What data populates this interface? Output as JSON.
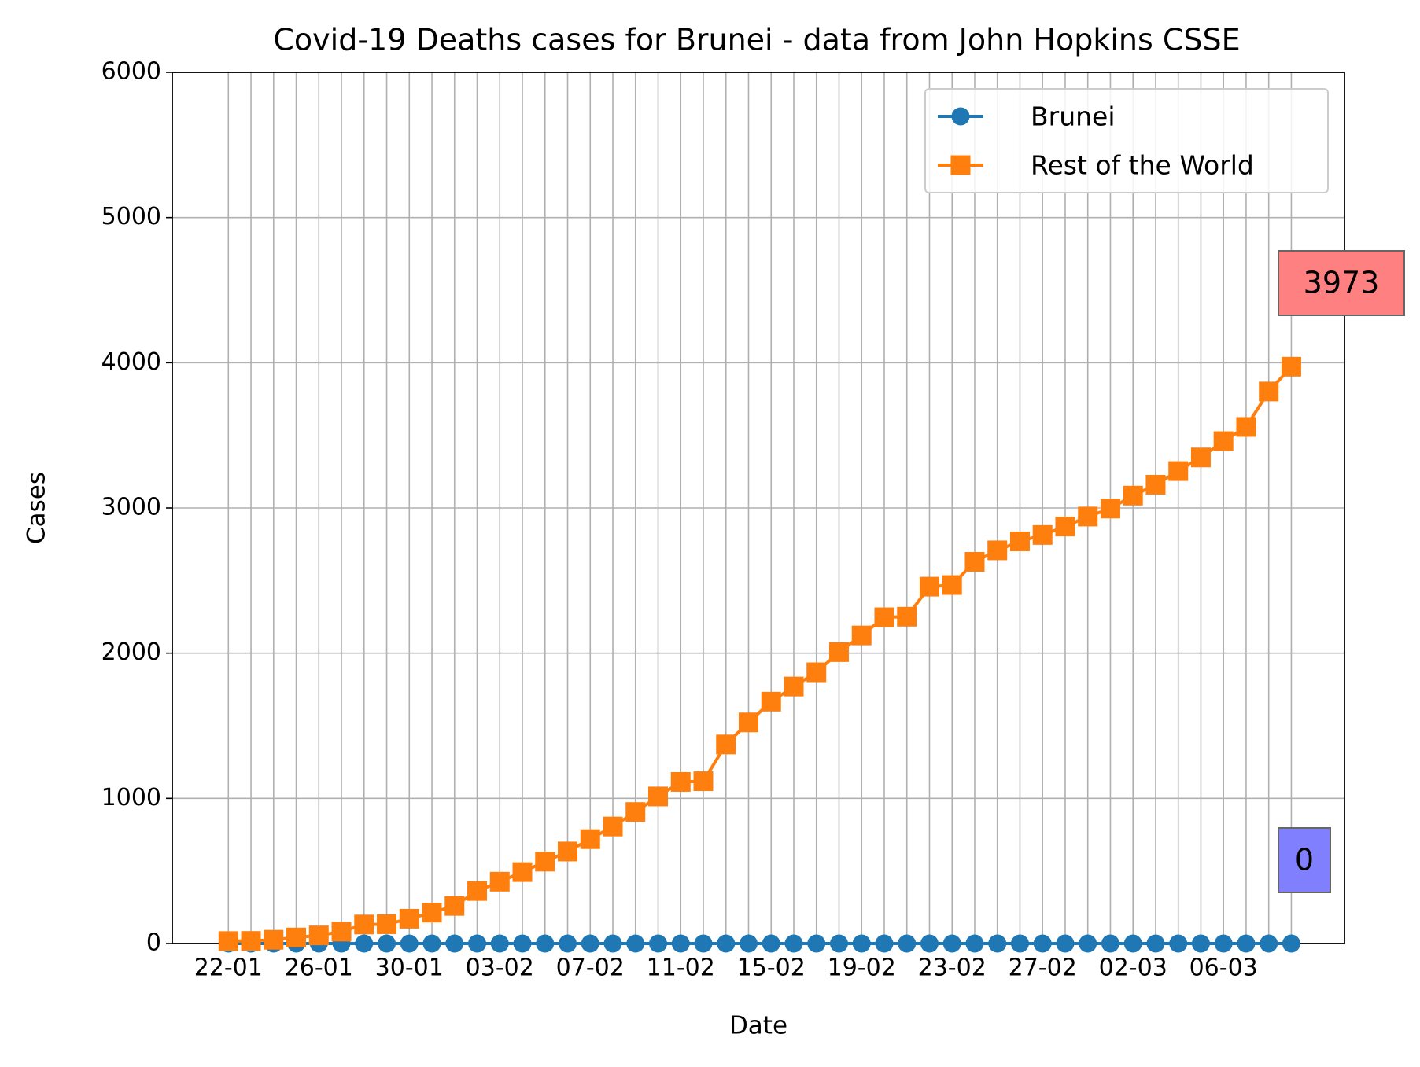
{
  "chart_data": {
    "type": "line",
    "title": "Covid-19 Deaths cases for Brunei - data from John Hopkins CSSE",
    "x_label": "Date",
    "y_label": "Cases",
    "categories": [
      "22-01",
      null,
      null,
      null,
      "26-01",
      null,
      null,
      null,
      "30-01",
      null,
      null,
      null,
      "03-02",
      null,
      null,
      null,
      "07-02",
      null,
      null,
      null,
      "11-02",
      null,
      null,
      null,
      "15-02",
      null,
      null,
      null,
      "19-02",
      null,
      null,
      null,
      "23-02",
      null,
      null,
      null,
      "27-02",
      null,
      null,
      null,
      "02-03",
      null,
      null,
      null,
      "06-03",
      null,
      null,
      null
    ],
    "series": [
      {
        "name": "Brunei",
        "color": "#1f77b4",
        "marker": "circle",
        "values": [
          0,
          0,
          0,
          0,
          0,
          0,
          0,
          0,
          0,
          0,
          0,
          0,
          0,
          0,
          0,
          0,
          0,
          0,
          0,
          0,
          0,
          0,
          0,
          0,
          0,
          0,
          0,
          0,
          0,
          0,
          0,
          0,
          0,
          0,
          0,
          0,
          0,
          0,
          0,
          0,
          0,
          0,
          0,
          0,
          0,
          0,
          0,
          0
        ]
      },
      {
        "name": "Rest of the World",
        "color": "#ff7f0e",
        "marker": "square",
        "values": [
          17,
          18,
          26,
          42,
          56,
          82,
          131,
          133,
          171,
          213,
          259,
          362,
          426,
          492,
          564,
          634,
          719,
          806,
          906,
          1013,
          1113,
          1118,
          1371,
          1523,
          1666,
          1770,
          1868,
          2007,
          2122,
          2247,
          2251,
          2458,
          2469,
          2629,
          2708,
          2770,
          2814,
          2872,
          2941,
          2996,
          3085,
          3160,
          3254,
          3348,
          3460,
          3558,
          3802,
          3973
        ]
      }
    ],
    "annotations": [
      {
        "value": 3973,
        "color": "#ff8080"
      },
      {
        "value": 0,
        "color": "#8080ff"
      }
    ],
    "ylim": [
      0,
      6000
    ],
    "yticks": [
      0,
      1000,
      2000,
      3000,
      4000,
      5000,
      6000
    ],
    "grid": true,
    "legend": "upper right"
  }
}
